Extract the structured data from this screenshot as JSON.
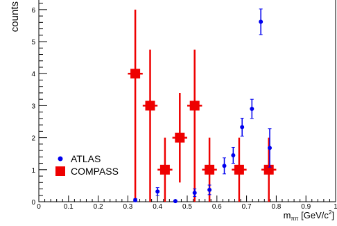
{
  "chart_data": {
    "type": "scatter",
    "xlabel_main": "m",
    "xlabel_sub": "ππ",
    "xlabel_unit": " [GeV/c",
    "xlabel_sup": "2",
    "xlabel_close": "]",
    "ylabel": "counts",
    "xlim": [
      0,
      1
    ],
    "ylim": [
      0,
      6.3
    ],
    "x_ticks": [
      0,
      0.1,
      0.2,
      0.3,
      0.4,
      0.5,
      0.6,
      0.7,
      0.8,
      0.9,
      1
    ],
    "x_tick_labels": [
      "0",
      "0.1",
      "0.2",
      "0.3",
      "0.4",
      "0.5",
      "0.6",
      "0.7",
      "0.8",
      "0.9",
      "1"
    ],
    "y_ticks": [
      0,
      1,
      2,
      3,
      4,
      5,
      6
    ],
    "y_tick_labels": [
      "0",
      "1",
      "2",
      "3",
      "4",
      "5",
      "6"
    ],
    "legend_position": "bottom-left",
    "series": [
      {
        "name": "ATLAS",
        "color": "#0000ee",
        "marker": "circle",
        "points": [
          {
            "x": 0.325,
            "y": 0.05,
            "err": 0.05
          },
          {
            "x": 0.4,
            "y": 0.32,
            "err": 0.12
          },
          {
            "x": 0.46,
            "y": 0.02,
            "err": 0.03
          },
          {
            "x": 0.525,
            "y": 0.28,
            "err": 0.12
          },
          {
            "x": 0.575,
            "y": 0.37,
            "err": 0.15
          },
          {
            "x": 0.625,
            "y": 1.12,
            "err": 0.25
          },
          {
            "x": 0.655,
            "y": 1.45,
            "err": 0.25
          },
          {
            "x": 0.685,
            "y": 2.33,
            "err": 0.28
          },
          {
            "x": 0.718,
            "y": 2.9,
            "err": 0.3
          },
          {
            "x": 0.748,
            "y": 5.62,
            "err": 0.4
          },
          {
            "x": 0.778,
            "y": 1.68,
            "err": 0.6
          }
        ]
      },
      {
        "name": "COMPASS",
        "color": "#ee0000",
        "marker": "square",
        "points": [
          {
            "x": 0.325,
            "y": 4.0,
            "xerr": 0.025,
            "yerr_up": 2.0,
            "yerr_down": 4.0
          },
          {
            "x": 0.375,
            "y": 3.0,
            "xerr": 0.025,
            "yerr_up": 1.75,
            "yerr_down": 3.0
          },
          {
            "x": 0.425,
            "y": 1.0,
            "xerr": 0.025,
            "yerr_up": 1.0,
            "yerr_down": 1.0
          },
          {
            "x": 0.475,
            "y": 2.0,
            "xerr": 0.025,
            "yerr_up": 1.4,
            "yerr_down": 1.4
          },
          {
            "x": 0.525,
            "y": 3.0,
            "xerr": 0.025,
            "yerr_up": 1.75,
            "yerr_down": 3.0
          },
          {
            "x": 0.575,
            "y": 1.0,
            "xerr": 0.025,
            "yerr_up": 1.0,
            "yerr_down": 1.0
          },
          {
            "x": 0.675,
            "y": 1.0,
            "xerr": 0.025,
            "yerr_up": 1.0,
            "yerr_down": 1.0
          },
          {
            "x": 0.775,
            "y": 1.0,
            "xerr": 0.025,
            "yerr_up": 1.0,
            "yerr_down": 1.0
          }
        ]
      }
    ]
  }
}
